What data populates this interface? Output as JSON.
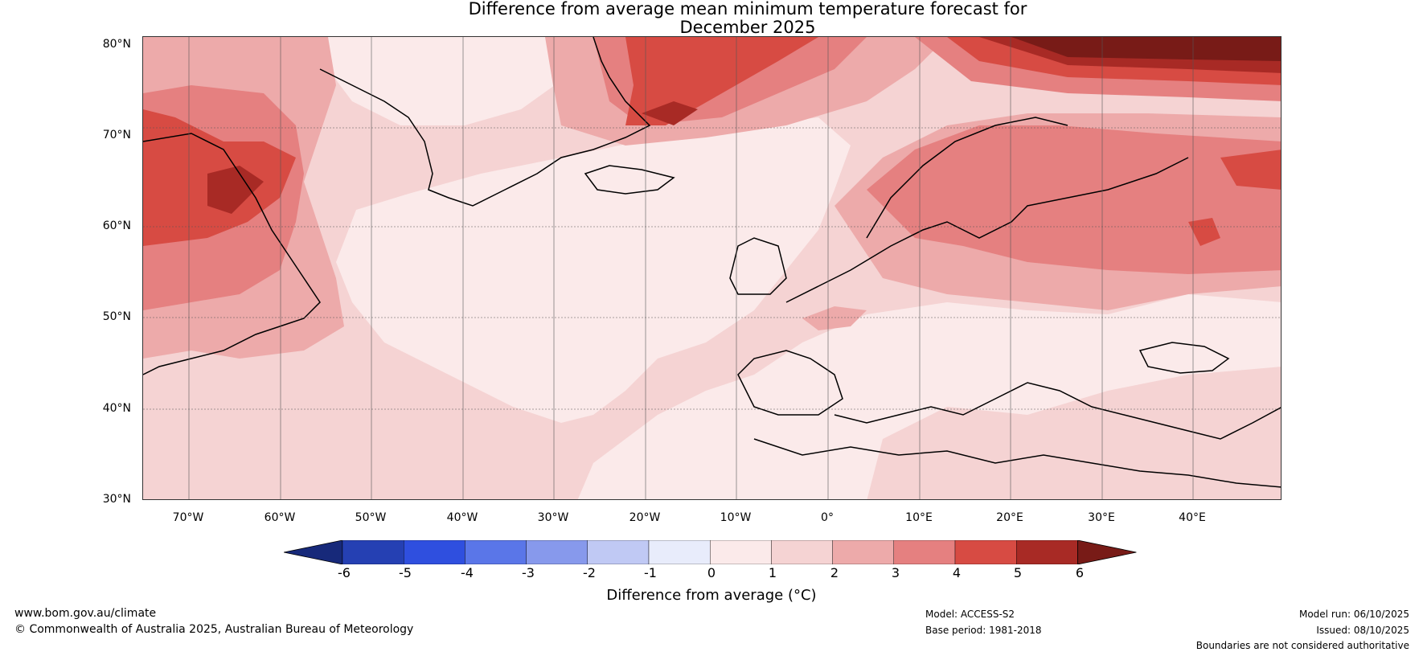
{
  "title_line1": "Difference from average mean minimum temperature forecast for",
  "title_line2": "December 2025",
  "lat_labels": [
    "80°N",
    "70°N",
    "60°N",
    "50°N",
    "40°N",
    "30°N"
  ],
  "lon_labels": [
    "70°W",
    "60°W",
    "50°W",
    "40°W",
    "30°W",
    "20°W",
    "10°W",
    "0°",
    "10°E",
    "20°E",
    "30°E",
    "40°E"
  ],
  "colorbar": {
    "ticks": [
      "-6",
      "-5",
      "-4",
      "-3",
      "-2",
      "-1",
      "0",
      "1",
      "2",
      "3",
      "4",
      "5",
      "6"
    ],
    "label": "Difference from average (°C)",
    "colors": [
      "#17297a",
      "#2540b3",
      "#2f4fdf",
      "#5a76e8",
      "#8799ec",
      "#c0c9f4",
      "#e8ecfb",
      "#fbeaea",
      "#f5d3d3",
      "#edaaaa",
      "#e58080",
      "#d74b43",
      "#a82a25",
      "#781b17"
    ]
  },
  "footer": {
    "website": "www.bom.gov.au/climate",
    "copyright": "© Commonwealth of Australia 2025, Australian Bureau of Meteorology",
    "model": "Model: ACCESS-S2",
    "base_period": "Base period: 1981-2018",
    "model_run": "Model run: 06/10/2025",
    "issued": "Issued: 08/10/2025",
    "disclaimer": "Boundaries are not considered authoritative"
  }
}
